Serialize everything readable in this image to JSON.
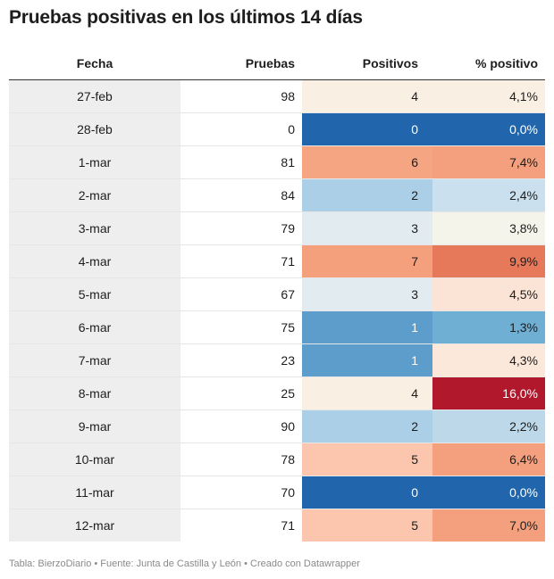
{
  "title": "Pruebas positivas en los últimos 14 días",
  "footer": "Tabla: BierzoDiario • Fuente: Junta de Castilla y León • Creado con Datawrapper",
  "chart_data": {
    "type": "table",
    "columns": [
      "Fecha",
      "Pruebas",
      "Positivos",
      "% positivo"
    ],
    "rows": [
      {
        "fecha": "27-feb",
        "pruebas": "98",
        "positivos": "4",
        "pct": "4,1%",
        "pos_color": "#f9efe3",
        "pct_color": "#f9efe3"
      },
      {
        "fecha": "28-feb",
        "pruebas": "0",
        "positivos": "0",
        "pct": "0,0%",
        "pos_color": "#2166ac",
        "pct_color": "#2166ac"
      },
      {
        "fecha": "1-mar",
        "pruebas": "81",
        "positivos": "6",
        "pct": "7,4%",
        "pos_color": "#f5a582",
        "pct_color": "#f4a07e"
      },
      {
        "fecha": "2-mar",
        "pruebas": "84",
        "positivos": "2",
        "pct": "2,4%",
        "pos_color": "#abcfe6",
        "pct_color": "#cae0ee"
      },
      {
        "fecha": "3-mar",
        "pruebas": "79",
        "positivos": "3",
        "pct": "3,8%",
        "pos_color": "#e1ebf0",
        "pct_color": "#f4f4ea"
      },
      {
        "fecha": "4-mar",
        "pruebas": "71",
        "positivos": "7",
        "pct": "9,9%",
        "pos_color": "#f4a07d",
        "pct_color": "#e7795b"
      },
      {
        "fecha": "5-mar",
        "pruebas": "67",
        "positivos": "3",
        "pct": "4,5%",
        "pos_color": "#e1ebf0",
        "pct_color": "#fbe4d6"
      },
      {
        "fecha": "6-mar",
        "pruebas": "75",
        "positivos": "1",
        "pct": "1,3%",
        "pos_color": "#5d9dcc",
        "pct_color": "#70afd4"
      },
      {
        "fecha": "7-mar",
        "pruebas": "23",
        "positivos": "1",
        "pct": "4,3%",
        "pos_color": "#5d9dcc",
        "pct_color": "#fbe8da"
      },
      {
        "fecha": "8-mar",
        "pruebas": "25",
        "positivos": "4",
        "pct": "16,0%",
        "pos_color": "#f9efe3",
        "pct_color": "#b2182b"
      },
      {
        "fecha": "9-mar",
        "pruebas": "90",
        "positivos": "2",
        "pct": "2,2%",
        "pos_color": "#abcfe6",
        "pct_color": "#bdd8e8"
      },
      {
        "fecha": "10-mar",
        "pruebas": "78",
        "positivos": "5",
        "pct": "6,4%",
        "pos_color": "#fbc6ad",
        "pct_color": "#f4a07e"
      },
      {
        "fecha": "11-mar",
        "pruebas": "70",
        "positivos": "0",
        "pct": "0,0%",
        "pos_color": "#2166ac",
        "pct_color": "#2166ac"
      },
      {
        "fecha": "12-mar",
        "pruebas": "71",
        "positivos": "5",
        "pct": "7,0%",
        "pos_color": "#fbc6ad",
        "pct_color": "#f4a07e"
      }
    ]
  }
}
